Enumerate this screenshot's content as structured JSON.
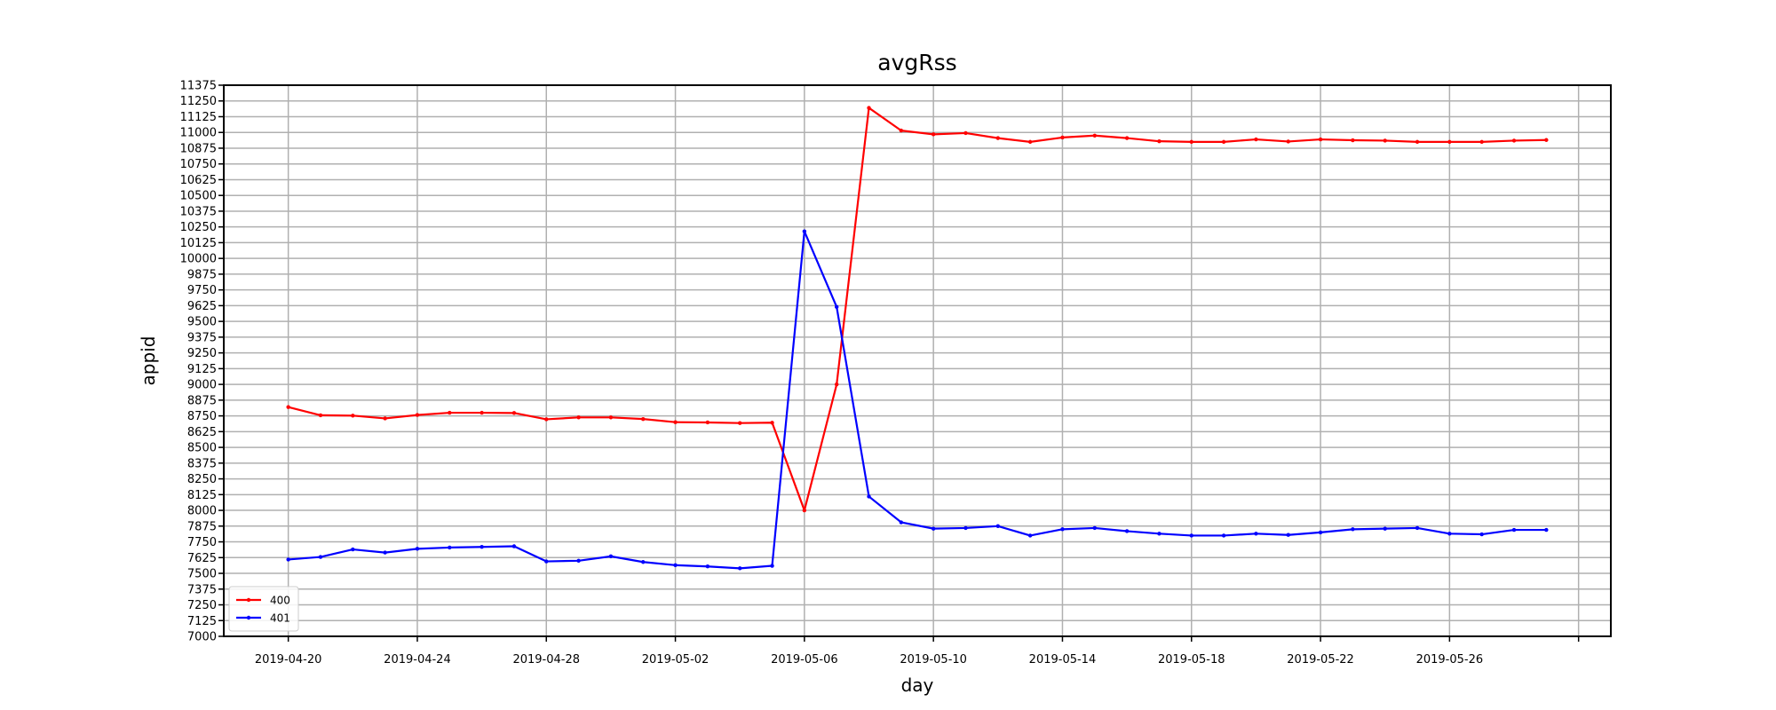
{
  "chart_data": {
    "type": "line",
    "title": "avgRss",
    "xlabel": "day",
    "ylabel": "appid",
    "ylim": [
      7000,
      11375
    ],
    "y_ticks": [
      7000,
      7125,
      7250,
      7375,
      7500,
      7625,
      7750,
      7875,
      8000,
      8125,
      8250,
      8375,
      8500,
      8625,
      8750,
      8875,
      9000,
      9125,
      9250,
      9375,
      9500,
      9625,
      9750,
      9875,
      10000,
      10125,
      10250,
      10375,
      10500,
      10625,
      10750,
      10875,
      11000,
      11125,
      11250,
      11375
    ],
    "xlim": [
      "2019-04-18",
      "2019-05-31"
    ],
    "x_ticks": [
      "2019-04-20",
      "2019-04-24",
      "2019-04-28",
      "2019-05-02",
      "2019-05-06",
      "2019-05-10",
      "2019-05-14",
      "2019-05-18",
      "2019-05-22",
      "2019-05-26",
      "2019-05-30"
    ],
    "x_tick_labels": [
      "2019-04-20",
      "2019-04-24",
      "2019-04-28",
      "2019-05-02",
      "2019-05-06",
      "2019-05-10",
      "2019-05-14",
      "2019-05-18",
      "2019-05-22",
      "2019-05-26",
      ""
    ],
    "x": [
      "2019-04-20",
      "2019-04-21",
      "2019-04-22",
      "2019-04-23",
      "2019-04-24",
      "2019-04-25",
      "2019-04-26",
      "2019-04-27",
      "2019-04-28",
      "2019-04-29",
      "2019-04-30",
      "2019-05-01",
      "2019-05-02",
      "2019-05-03",
      "2019-05-04",
      "2019-05-05",
      "2019-05-06",
      "2019-05-07",
      "2019-05-08",
      "2019-05-09",
      "2019-05-10",
      "2019-05-11",
      "2019-05-12",
      "2019-05-13",
      "2019-05-14",
      "2019-05-15",
      "2019-05-16",
      "2019-05-17",
      "2019-05-18",
      "2019-05-19",
      "2019-05-20",
      "2019-05-21",
      "2019-05-22",
      "2019-05-23",
      "2019-05-24",
      "2019-05-25",
      "2019-05-26",
      "2019-05-27",
      "2019-05-28",
      "2019-05-29"
    ],
    "series": [
      {
        "name": "400",
        "color": "#ff0000",
        "values": [
          8820,
          8755,
          8752,
          8730,
          8757,
          8775,
          8775,
          8773,
          8723,
          8738,
          8738,
          8725,
          8700,
          8698,
          8693,
          8696,
          8000,
          9000,
          11195,
          11015,
          10985,
          10995,
          10955,
          10925,
          10960,
          10975,
          10955,
          10930,
          10925,
          10925,
          10945,
          10928,
          10945,
          10938,
          10935,
          10925,
          10925,
          10925,
          10935,
          10940
        ]
      },
      {
        "name": "401",
        "color": "#0000ff",
        "values": [
          7610,
          7630,
          7690,
          7665,
          7695,
          7705,
          7710,
          7715,
          7595,
          7600,
          7635,
          7590,
          7565,
          7555,
          7540,
          7560,
          10215,
          9615,
          8110,
          7905,
          7855,
          7860,
          7875,
          7800,
          7850,
          7860,
          7835,
          7815,
          7800,
          7800,
          7815,
          7805,
          7825,
          7850,
          7855,
          7860,
          7815,
          7810,
          7845,
          7845
        ]
      }
    ],
    "grid": true,
    "legend_position": "lower-left"
  }
}
